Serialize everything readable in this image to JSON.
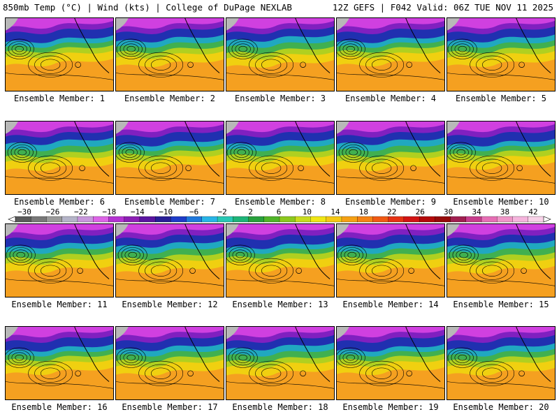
{
  "header": {
    "left": "850mb Temp (°C) | Wind (kts) | College of DuPage NEXLAB",
    "right": "12Z GEFS | F042 Valid: 06Z TUE NOV 11 2025"
  },
  "members": [
    "Ensemble Member: 1",
    "Ensemble Member: 2",
    "Ensemble Member: 3",
    "Ensemble Member: 4",
    "Ensemble Member: 5",
    "Ensemble Member: 6",
    "Ensemble Member: 7",
    "Ensemble Member: 8",
    "Ensemble Member: 9",
    "Ensemble Member: 10",
    "Ensemble Member: 11",
    "Ensemble Member: 12",
    "Ensemble Member: 13",
    "Ensemble Member: 14",
    "Ensemble Member: 15",
    "Ensemble Member: 16",
    "Ensemble Member: 17",
    "Ensemble Member: 18",
    "Ensemble Member: 19",
    "Ensemble Member: 20"
  ],
  "colorbar": {
    "ticks": [
      "−30",
      "−26",
      "−22",
      "−18",
      "−14",
      "−10",
      "−6",
      "−2",
      "2",
      "6",
      "10",
      "14",
      "18",
      "22",
      "26",
      "30",
      "34",
      "38",
      "42"
    ],
    "colors": [
      "#5a5a5a",
      "#787878",
      "#9a9a9a",
      "#b4b4c8",
      "#c896dc",
      "#dc64e6",
      "#b432d2",
      "#8c1eb4",
      "#5a14a0",
      "#281e96",
      "#1e3cc8",
      "#1e78dc",
      "#28b4e6",
      "#28c8b4",
      "#1eb478",
      "#28a03c",
      "#50b428",
      "#8cc81e",
      "#c8dc1e",
      "#f0e614",
      "#f5c814",
      "#f5a014",
      "#f58214",
      "#f05a14",
      "#e63214",
      "#d21414",
      "#b40a0a",
      "#960a0a",
      "#a01e50",
      "#c83c8c",
      "#e66eb4",
      "#f096c8",
      "#f5b4dc",
      "#f8d2e8"
    ]
  },
  "map_colors": {
    "snow": "#b8b8b8",
    "magenta": "#d040e0",
    "purple": "#8020c0",
    "blue": "#2030b0",
    "cyan": "#20a8c0",
    "green": "#40b050",
    "yellowgreen": "#b0d020",
    "yellow": "#f0d010",
    "orange": "#f5a020"
  }
}
